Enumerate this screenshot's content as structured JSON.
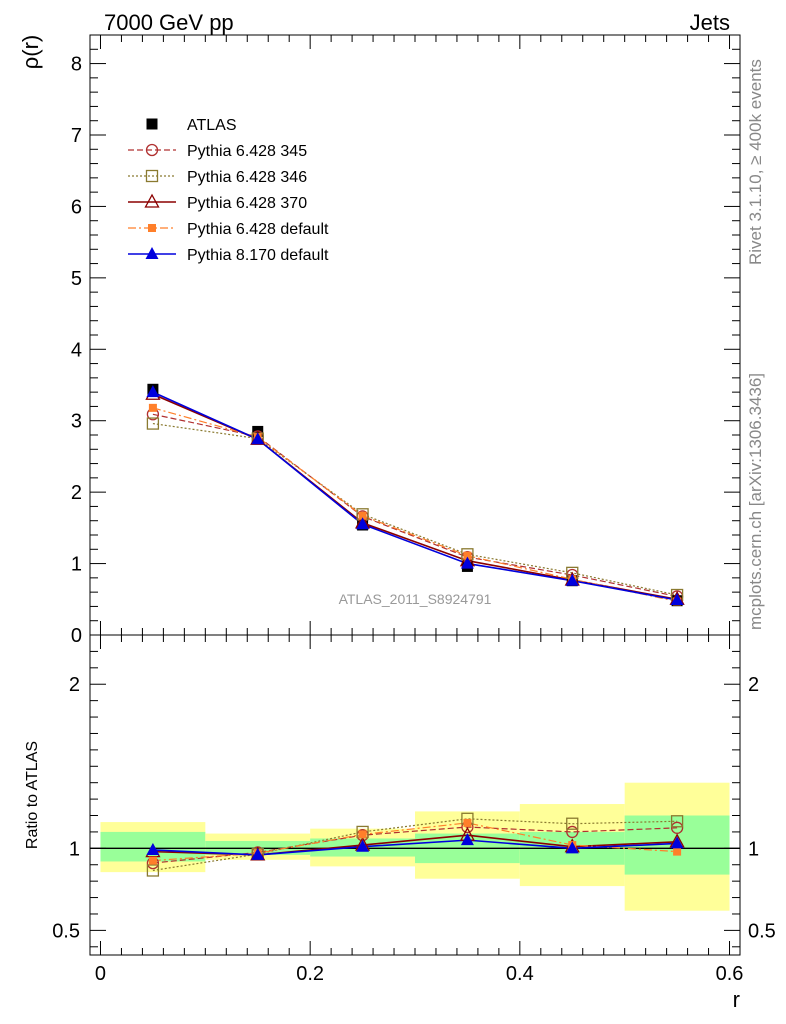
{
  "header": {
    "left": "7000 GeV pp",
    "right": "Jets"
  },
  "side_labels": {
    "top": "Rivet 3.1.10, ≥ 400k events",
    "bottom": "mcplots.cern.ch [arXiv:1306.3436]"
  },
  "chart_data": {
    "type": "line",
    "analysis_label": "ATLAS_2011_S8924791",
    "main": {
      "ylabel": "ρ(r)",
      "ylim": [
        0,
        8.4
      ],
      "yticks": [
        0,
        1,
        2,
        3,
        4,
        5,
        6,
        7,
        8
      ],
      "ytick_labels": [
        "0",
        "1",
        "2",
        "3",
        "4",
        "5",
        "6",
        "7",
        "8"
      ]
    },
    "ratio": {
      "ylabel": "Ratio to ATLAS",
      "ylim": [
        0.35,
        2.3
      ],
      "yticks": [
        0.5,
        1,
        2
      ],
      "ytick_labels": [
        "0.5",
        "1",
        "2"
      ]
    },
    "xlabel": "r",
    "xlim": [
      -0.01,
      0.61
    ],
    "xticks": [
      0,
      0.2,
      0.4,
      0.6
    ],
    "xtick_labels": [
      "0",
      "0.2",
      "0.4",
      "0.6"
    ],
    "x": [
      0.05,
      0.15,
      0.25,
      0.35,
      0.45,
      0.55
    ],
    "data": {
      "name": "ATLAS",
      "values": [
        3.44,
        2.85,
        1.54,
        0.96,
        0.76,
        0.48
      ]
    },
    "series": [
      {
        "name": "Pythia 6.428 345",
        "color": "#b03030",
        "dash": "6,3",
        "marker": "circle-open",
        "values": [
          3.09,
          2.78,
          1.66,
          1.09,
          0.84,
          0.54
        ]
      },
      {
        "name": "Pythia 6.428 346",
        "color": "#8a7a30",
        "dash": "2,2",
        "marker": "square-open",
        "values": [
          2.96,
          2.75,
          1.69,
          1.13,
          0.87,
          0.56
        ]
      },
      {
        "name": "Pythia 6.428 370",
        "color": "#8b0000",
        "dash": "",
        "marker": "triangle-open",
        "values": [
          3.37,
          2.74,
          1.57,
          1.04,
          0.77,
          0.5
        ]
      },
      {
        "name": "Pythia 6.428 default",
        "color": "#ff7f2a",
        "dash": "8,3,2,3",
        "marker": "square-filled",
        "values": [
          3.18,
          2.77,
          1.67,
          1.11,
          0.78,
          0.47
        ]
      },
      {
        "name": "Pythia 8.170 default",
        "color": "#0000dd",
        "dash": "",
        "marker": "triangle-filled",
        "values": [
          3.4,
          2.74,
          1.55,
          1.0,
          0.76,
          0.49
        ]
      }
    ],
    "ratio_series": [
      {
        "name": "Pythia 6.428 345",
        "values": [
          0.91,
          0.975,
          1.08,
          1.13,
          1.1,
          1.125
        ]
      },
      {
        "name": "Pythia 6.428 346",
        "values": [
          0.865,
          0.965,
          1.1,
          1.18,
          1.15,
          1.165
        ]
      },
      {
        "name": "Pythia 6.428 370",
        "values": [
          0.98,
          0.96,
          1.02,
          1.08,
          1.01,
          1.04
        ]
      },
      {
        "name": "Pythia 6.428 default",
        "values": [
          0.925,
          0.97,
          1.085,
          1.155,
          1.02,
          0.98
        ]
      },
      {
        "name": "Pythia 8.170 default",
        "values": [
          0.99,
          0.96,
          1.01,
          1.05,
          1.0,
          1.03
        ]
      }
    ],
    "uncertainty_bands": {
      "bins": [
        [
          0,
          0.1
        ],
        [
          0.1,
          0.2
        ],
        [
          0.2,
          0.3
        ],
        [
          0.3,
          0.4
        ],
        [
          0.4,
          0.5
        ],
        [
          0.5,
          0.6
        ]
      ],
      "inner": [
        [
          0.92,
          1.1
        ],
        [
          0.96,
          1.045
        ],
        [
          0.95,
          1.06
        ],
        [
          0.91,
          1.09
        ],
        [
          0.9,
          1.1
        ],
        [
          0.84,
          1.2
        ]
      ],
      "outer": [
        [
          0.855,
          1.16
        ],
        [
          0.93,
          1.09
        ],
        [
          0.89,
          1.12
        ],
        [
          0.815,
          1.225
        ],
        [
          0.77,
          1.27
        ],
        [
          0.62,
          1.4
        ]
      ],
      "inner_color": "#99ff99",
      "outer_color": "#ffff99"
    },
    "legend_position": "top-left"
  }
}
